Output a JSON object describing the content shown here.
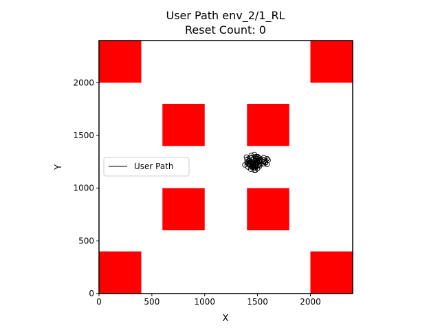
{
  "chart_data": {
    "type": "line",
    "title_line1": "User Path env_2/1_RL",
    "title_line2": "Reset Count: 0",
    "xlabel": "X",
    "ylabel": "Y",
    "xlim": [
      0,
      2400
    ],
    "ylim": [
      0,
      2400
    ],
    "xticks": [
      0,
      500,
      1000,
      1500,
      2000
    ],
    "yticks": [
      0,
      500,
      1000,
      1500,
      2000
    ],
    "grid": false,
    "legend": {
      "placement": "center-left",
      "entries": [
        "User Path"
      ]
    },
    "obstacles": [
      {
        "x": [
          0,
          400
        ],
        "y": [
          2000,
          2400
        ]
      },
      {
        "x": [
          2000,
          2400
        ],
        "y": [
          2000,
          2400
        ]
      },
      {
        "x": [
          600,
          1000
        ],
        "y": [
          1400,
          1800
        ]
      },
      {
        "x": [
          1400,
          1800
        ],
        "y": [
          1400,
          1800
        ]
      },
      {
        "x": [
          600,
          1000
        ],
        "y": [
          600,
          1000
        ]
      },
      {
        "x": [
          1400,
          1800
        ],
        "y": [
          600,
          1000
        ]
      },
      {
        "x": [
          0,
          400
        ],
        "y": [
          0,
          400
        ]
      },
      {
        "x": [
          2000,
          2400
        ],
        "y": [
          0,
          400
        ]
      }
    ],
    "obstacle_color": "#ff0000",
    "series": [
      {
        "name": "User Path",
        "color": "#000000",
        "points": [
          [
            1420,
            1230
          ],
          [
            1455,
            1270
          ],
          [
            1500,
            1240
          ],
          [
            1470,
            1195
          ],
          [
            1430,
            1215
          ],
          [
            1445,
            1290
          ],
          [
            1490,
            1300
          ],
          [
            1520,
            1250
          ],
          [
            1480,
            1205
          ],
          [
            1420,
            1260
          ],
          [
            1395,
            1295
          ],
          [
            1440,
            1310
          ],
          [
            1480,
            1275
          ],
          [
            1455,
            1220
          ],
          [
            1410,
            1200
          ],
          [
            1400,
            1245
          ],
          [
            1450,
            1250
          ],
          [
            1510,
            1215
          ],
          [
            1540,
            1260
          ],
          [
            1505,
            1290
          ],
          [
            1460,
            1235
          ],
          [
            1435,
            1180
          ],
          [
            1480,
            1170
          ],
          [
            1520,
            1210
          ],
          [
            1560,
            1250
          ],
          [
            1590,
            1280
          ],
          [
            1575,
            1240
          ],
          [
            1530,
            1230
          ],
          [
            1490,
            1260
          ],
          [
            1470,
            1320
          ],
          [
            1500,
            1300
          ],
          [
            1530,
            1270
          ],
          [
            1490,
            1225
          ],
          [
            1450,
            1200
          ],
          [
            1420,
            1240
          ],
          [
            1380,
            1220
          ],
          [
            1400,
            1270
          ],
          [
            1430,
            1250
          ],
          [
            1465,
            1215
          ],
          [
            1500,
            1185
          ],
          [
            1470,
            1170
          ],
          [
            1445,
            1210
          ],
          [
            1475,
            1260
          ],
          [
            1520,
            1285
          ],
          [
            1560,
            1290
          ],
          [
            1600,
            1265
          ],
          [
            1590,
            1225
          ],
          [
            1555,
            1230
          ],
          [
            1520,
            1255
          ],
          [
            1480,
            1240
          ]
        ]
      }
    ]
  }
}
